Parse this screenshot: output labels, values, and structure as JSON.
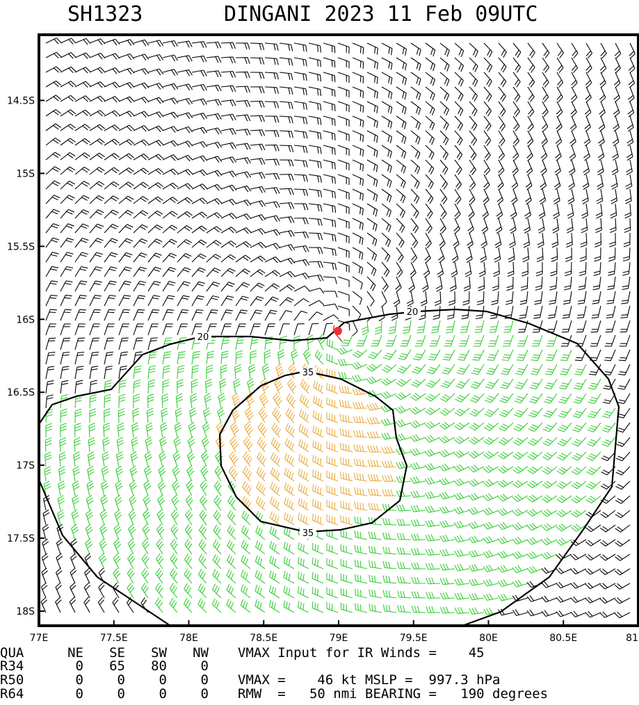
{
  "header": {
    "storm_id": "SH1323",
    "title": "DINGANI 2023 11 Feb 09UTC"
  },
  "chart_data": {
    "type": "wind-barb-map",
    "title": "SH1323     DINGANI 2023 11 Feb 09UTC",
    "x_range_lon_E": [
      77.0,
      81.0
    ],
    "y_range_lat_S": [
      18.1,
      14.05
    ],
    "x_ticks": [
      {
        "value": 77.0,
        "label": "77E"
      },
      {
        "value": 77.5,
        "label": "77.5E"
      },
      {
        "value": 78.0,
        "label": "78E"
      },
      {
        "value": 78.5,
        "label": "78.5E"
      },
      {
        "value": 79.0,
        "label": "79E"
      },
      {
        "value": 79.5,
        "label": "79.5E"
      },
      {
        "value": 80.0,
        "label": "80E"
      },
      {
        "value": 80.5,
        "label": "80.5E"
      },
      {
        "value": 81.0,
        "label": "81"
      }
    ],
    "y_ticks": [
      {
        "value": 14.5,
        "label": "14.5S"
      },
      {
        "value": 15.0,
        "label": "15S"
      },
      {
        "value": 15.5,
        "label": "15.5S"
      },
      {
        "value": 16.0,
        "label": "16S"
      },
      {
        "value": 16.5,
        "label": "16.5S"
      },
      {
        "value": 17.0,
        "label": "17S"
      },
      {
        "value": 17.5,
        "label": "17.5S"
      },
      {
        "value": 18.0,
        "label": "18S"
      }
    ],
    "center": {
      "lon": 79.0,
      "lat": 16.1
    },
    "contours": [
      {
        "label": "20",
        "value": 20,
        "color": "#000000"
      },
      {
        "label": "35",
        "value": 35,
        "color": "#000000"
      }
    ],
    "barb_colors": {
      "below_34kt": "#000000",
      "r34_to_r50": "#33cc33",
      "above_35_contour": "#e8a93a",
      "center_marker": "#ee3333"
    }
  },
  "info_table": {
    "header": [
      "QUA",
      "NE",
      "SE",
      "SW",
      "NW"
    ],
    "rows": [
      [
        "R34",
        "0",
        "65",
        "80",
        "0"
      ],
      [
        "R50",
        "0",
        "0",
        "0",
        "0"
      ],
      [
        "R64",
        "0",
        "0",
        "0",
        "0"
      ]
    ],
    "lines": [
      "VMAX Input for IR Winds =    45",
      "",
      "VMAX =    46 kt MSLP =  997.3 hPa",
      "RMW  =   50 nmi BEARING =   190 degrees"
    ]
  }
}
